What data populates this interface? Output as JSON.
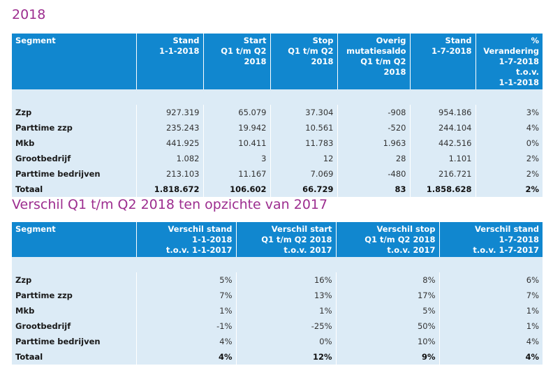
{
  "section1": {
    "title": "2018",
    "headers": [
      [
        "Segment"
      ],
      [
        "Stand",
        "1-1-2018"
      ],
      [
        "Start",
        "Q1 t/m Q2",
        "2018"
      ],
      [
        "Stop",
        "Q1 t/m Q2",
        "2018"
      ],
      [
        "Overig",
        "mutatiesaldo",
        "Q1 t/m Q2 2018"
      ],
      [
        "Stand",
        "1-7-2018"
      ],
      [
        "% Verandering",
        "1-7-2018 t.o.v.",
        "1-1-2018"
      ]
    ],
    "rows": [
      [
        "Zzp",
        "927.319",
        "65.079",
        "37.304",
        "-908",
        "954.186",
        "3%"
      ],
      [
        "Parttime zzp",
        "235.243",
        "19.942",
        "10.561",
        "-520",
        "244.104",
        "4%"
      ],
      [
        "Mkb",
        "441.925",
        "10.411",
        "11.783",
        "1.963",
        "442.516",
        "0%"
      ],
      [
        "Grootbedrijf",
        "1.082",
        "3",
        "12",
        "28",
        "1.101",
        "2%"
      ],
      [
        "Parttime bedrijven",
        "213.103",
        "11.167",
        "7.069",
        "-480",
        "216.721",
        "2%"
      ],
      [
        "Totaal",
        "1.818.672",
        "106.602",
        "66.729",
        "83",
        "1.858.628",
        "2%"
      ]
    ]
  },
  "section2": {
    "title": "Verschil Q1 t/m Q2 2018 ten opzichte van 2017",
    "headers": [
      [
        "Segment"
      ],
      [
        "Verschil stand",
        "1-1-2018",
        "t.o.v. 1-1-2017"
      ],
      [
        "Verschil start",
        "Q1 t/m Q2  2018",
        "t.o.v. 2017"
      ],
      [
        "Verschil stop",
        "Q1 t/m Q2 2018",
        "t.o.v. 2017"
      ],
      [
        "Verschil stand",
        "1-7-2018",
        "t.o.v. 1-7-2017"
      ]
    ],
    "rows": [
      [
        "Zzp",
        "5%",
        "16%",
        "8%",
        "6%"
      ],
      [
        "Parttime zzp",
        "7%",
        "13%",
        "17%",
        "7%"
      ],
      [
        "Mkb",
        "1%",
        "1%",
        "5%",
        "1%"
      ],
      [
        "Grootbedrijf",
        "-1%",
        "-25%",
        "50%",
        "1%"
      ],
      [
        "Parttime bedrijven",
        "4%",
        "0%",
        "10%",
        "4%"
      ],
      [
        "Totaal",
        "4%",
        "12%",
        "9%",
        "4%"
      ]
    ]
  },
  "colors": {
    "heading": "#9c2d8f",
    "header_bg": "#1187cf",
    "row_bg": "#dcebf6"
  }
}
